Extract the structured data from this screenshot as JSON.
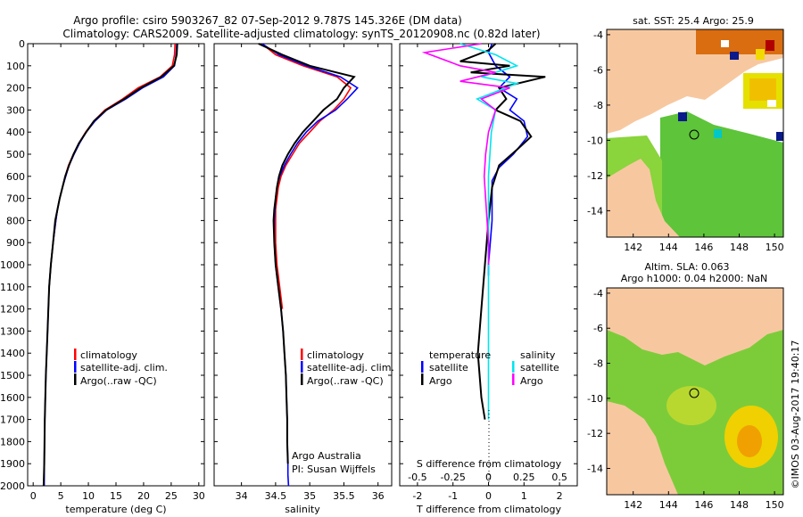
{
  "header": {
    "line1": "Argo profile: csiro 5903267_82 07-Sep-2012 9.787S 145.326E (DM data)",
    "line2": "Climatology: CARS2009. Satellite-adjusted climatology: synTS_20120908.nc (0.82d later)"
  },
  "colors": {
    "climatology": "#ff0000",
    "satellite": "#0000ff",
    "argo": "#000000",
    "sal_sat": "#00e5ee",
    "sal_argo": "#ff00ff",
    "land": "#f7c8a0"
  },
  "chart_data": [
    {
      "type": "line",
      "name": "temperature",
      "title": "",
      "xlabel": "temperature (deg C)",
      "ylabel": "",
      "xlim": [
        -1,
        31
      ],
      "ylim": [
        2000,
        0
      ],
      "xticks": [
        "0",
        "5",
        "10",
        "15",
        "20",
        "25",
        "30"
      ],
      "xtick_values": [
        0,
        5,
        10,
        15,
        20,
        25,
        30
      ],
      "yticks": [
        "0",
        "100",
        "200",
        "300",
        "400",
        "500",
        "600",
        "700",
        "800",
        "900",
        "1000",
        "1100",
        "1200",
        "1300",
        "1400",
        "1500",
        "1600",
        "1700",
        "1800",
        "1900",
        "2000"
      ],
      "ytick_values": [
        0,
        100,
        200,
        300,
        400,
        500,
        600,
        700,
        800,
        900,
        1000,
        1100,
        1200,
        1300,
        1400,
        1500,
        1600,
        1700,
        1800,
        1900,
        2000
      ],
      "legend": [
        "climatology",
        "satellite-adj. clim.",
        "Argo(..raw -QC)"
      ],
      "series": [
        {
          "name": "climatology",
          "color": "#ff0000",
          "x": [
            25.7,
            25.6,
            25.2,
            23.0,
            19.0,
            16.2,
            13.0,
            11.0,
            9.5,
            8.3,
            7.3,
            6.4,
            5.8,
            5.3,
            4.8,
            4.4,
            4.1,
            3.6,
            3.2,
            2.9
          ],
          "y": [
            0,
            50,
            100,
            150,
            200,
            250,
            300,
            350,
            400,
            450,
            500,
            550,
            600,
            650,
            700,
            750,
            800,
            900,
            1000,
            1100
          ]
        },
        {
          "name": "satellite-adj. clim.",
          "color": "#0000ff",
          "x": [
            26.0,
            25.9,
            25.6,
            23.6,
            19.8,
            16.8,
            13.3,
            11.2,
            9.6,
            8.4,
            7.4,
            6.5,
            5.9,
            5.3,
            4.8,
            4.4,
            4.1,
            3.6,
            3.2,
            2.9,
            2.6,
            2.3,
            2.1,
            2.0,
            2.0
          ],
          "y": [
            0,
            50,
            100,
            150,
            200,
            250,
            300,
            350,
            400,
            450,
            500,
            550,
            600,
            650,
            700,
            750,
            800,
            900,
            1000,
            1100,
            1300,
            1500,
            1700,
            1900,
            2000
          ]
        },
        {
          "name": "Argo(..raw -QC)",
          "color": "#000000",
          "x": [
            26.1,
            26.0,
            25.5,
            23.2,
            19.5,
            16.5,
            13.2,
            11.0,
            9.6,
            8.3,
            7.3,
            6.5,
            5.8,
            5.3,
            4.8,
            4.4,
            4.0,
            3.6,
            3.2,
            2.9,
            2.6,
            2.3,
            2.1,
            2.0,
            1.9
          ],
          "y": [
            0,
            50,
            100,
            150,
            200,
            250,
            300,
            350,
            400,
            450,
            500,
            550,
            600,
            650,
            700,
            750,
            800,
            900,
            1000,
            1100,
            1300,
            1500,
            1700,
            1900,
            2000
          ]
        }
      ]
    },
    {
      "type": "line",
      "name": "salinity",
      "xlabel": "salinity",
      "xlim": [
        33.6,
        36.2
      ],
      "ylim": [
        2000,
        0
      ],
      "xticks": [
        "34",
        "34.5",
        "35",
        "35.5",
        "36"
      ],
      "xtick_values": [
        34,
        34.5,
        35,
        35.5,
        36
      ],
      "legend": [
        "climatology",
        "satellite-adj. clim.",
        "Argo(..raw -QC)"
      ],
      "annotation": [
        "Argo Australia",
        "PI: Susan Wijffels"
      ],
      "series": [
        {
          "name": "climatology",
          "color": "#ff0000",
          "x": [
            34.3,
            34.5,
            34.9,
            35.4,
            35.6,
            35.5,
            35.35,
            35.15,
            35.0,
            34.85,
            34.75,
            34.65,
            34.58,
            34.54,
            34.52,
            34.5,
            34.5,
            34.5,
            34.52,
            34.56,
            34.6
          ],
          "y": [
            0,
            50,
            100,
            150,
            200,
            250,
            300,
            350,
            400,
            450,
            500,
            550,
            600,
            650,
            700,
            750,
            800,
            900,
            1000,
            1100,
            1200
          ]
        },
        {
          "name": "satellite-adj. clim.",
          "color": "#0000ff",
          "x": [
            34.3,
            34.55,
            34.95,
            35.45,
            35.7,
            35.55,
            35.38,
            35.12,
            34.95,
            34.82,
            34.72,
            34.63,
            34.56,
            34.52,
            34.5,
            34.49,
            34.48,
            34.48,
            34.5,
            34.54,
            34.58,
            34.61,
            34.63,
            34.65,
            34.66,
            34.67,
            34.67,
            34.68,
            34.68,
            34.69
          ],
          "y": [
            0,
            50,
            100,
            150,
            200,
            250,
            300,
            350,
            400,
            450,
            500,
            550,
            600,
            650,
            700,
            750,
            800,
            900,
            1000,
            1100,
            1200,
            1300,
            1400,
            1500,
            1600,
            1700,
            1800,
            1900,
            1950,
            2000
          ]
        },
        {
          "name": "Argo(..raw -QC)",
          "color": "#000000",
          "x": [
            34.25,
            34.6,
            35.0,
            35.65,
            35.5,
            35.4,
            35.2,
            35.05,
            34.9,
            34.78,
            34.68,
            34.6,
            34.55,
            34.52,
            34.5,
            34.48,
            34.47,
            34.48,
            34.5,
            34.54,
            34.58,
            34.61,
            34.63,
            34.65,
            34.66,
            34.67,
            34.67,
            34.68
          ],
          "y": [
            0,
            50,
            100,
            150,
            200,
            250,
            300,
            350,
            400,
            450,
            500,
            550,
            600,
            650,
            700,
            750,
            800,
            900,
            1000,
            1100,
            1200,
            1300,
            1400,
            1500,
            1600,
            1700,
            1800,
            1900
          ]
        }
      ]
    },
    {
      "type": "line",
      "name": "difference from climatology",
      "xlabel": "T difference from climatology",
      "x2label": "S difference from climatology",
      "xlim": [
        -2.5,
        2.5
      ],
      "x2lim": [
        -0.625,
        0.625
      ],
      "ylim": [
        2000,
        0
      ],
      "xticks": [
        "-2",
        "-1",
        "0",
        "1",
        "2"
      ],
      "xtick_values": [
        -2,
        -1,
        0,
        1,
        2
      ],
      "x2ticks": [
        "-0.5",
        "-0.25",
        "0",
        "0.25",
        "0.5"
      ],
      "x2tick_values": [
        -0.5,
        -0.25,
        0,
        0.25,
        0.5
      ],
      "legend_left_title": "temperature",
      "legend_right_title": "salinity",
      "legend": [
        "satellite",
        "Argo",
        "satellite",
        "Argo"
      ],
      "series": [
        {
          "name": "temperature satellite",
          "color": "#0000ff",
          "x": [
            0.1,
            0.0,
            0.2,
            0.6,
            0.3,
            0.8,
            0.6,
            1.0,
            1.1,
            0.7,
            0.3,
            0.1,
            0.1,
            0.1,
            0.05,
            0.0,
            0.0
          ],
          "y": [
            0,
            40,
            100,
            150,
            200,
            250,
            300,
            350,
            420,
            500,
            560,
            620,
            700,
            800,
            900,
            1000,
            1050
          ]
        },
        {
          "name": "temperature Argo",
          "color": "#000000",
          "x": [
            0.2,
            0.0,
            -0.8,
            0.6,
            -0.5,
            1.6,
            0.3,
            0.5,
            0.2,
            0.9,
            1.2,
            0.8,
            0.3,
            0.1,
            0.0,
            -0.1,
            -0.2,
            -0.3,
            -0.2,
            -0.1
          ],
          "y": [
            0,
            30,
            80,
            100,
            130,
            150,
            200,
            250,
            300,
            350,
            420,
            480,
            550,
            650,
            800,
            1000,
            1200,
            1400,
            1600,
            1700
          ]
        },
        {
          "name": "salinity satellite",
          "color": "#00e5ee",
          "x": [
            -0.2,
            0.05,
            0.2,
            -0.05,
            0.2,
            -0.08,
            0.05,
            0.02,
            0.01,
            0.0,
            0.0,
            0.0,
            0.0,
            0.0
          ],
          "y": [
            0,
            50,
            100,
            150,
            180,
            250,
            300,
            400,
            500,
            600,
            800,
            1000,
            1200,
            1700
          ]
        },
        {
          "name": "salinity Argo",
          "color": "#ff00ff",
          "x": [
            -0.05,
            -0.45,
            -0.2,
            0.05,
            -0.2,
            0.15,
            -0.05,
            0.05,
            0.0,
            -0.02,
            -0.03,
            -0.02,
            -0.01,
            0.0,
            0.0
          ],
          "y": [
            0,
            40,
            100,
            130,
            170,
            200,
            250,
            300,
            400,
            500,
            600,
            700,
            800,
            900,
            1000
          ]
        }
      ]
    }
  ],
  "maps": {
    "top": {
      "title": "sat. SST: 25.4  Argo: 25.9",
      "xticks": [
        "142",
        "144",
        "146",
        "148",
        "150"
      ],
      "yticks": [
        "-4",
        "-6",
        "-8",
        "-10",
        "-12",
        "-14"
      ]
    },
    "bottom": {
      "title1": "Altim. SLA: 0.063",
      "title2": "Argo h1000: 0.04 h2000: NaN",
      "xticks": [
        "142",
        "144",
        "146",
        "148",
        "150"
      ],
      "yticks": [
        "-4",
        "-6",
        "-8",
        "-10",
        "-12",
        "-14"
      ]
    }
  },
  "footer": {
    "credit": "©IMOS 03-Aug-2017 19:40:17"
  }
}
